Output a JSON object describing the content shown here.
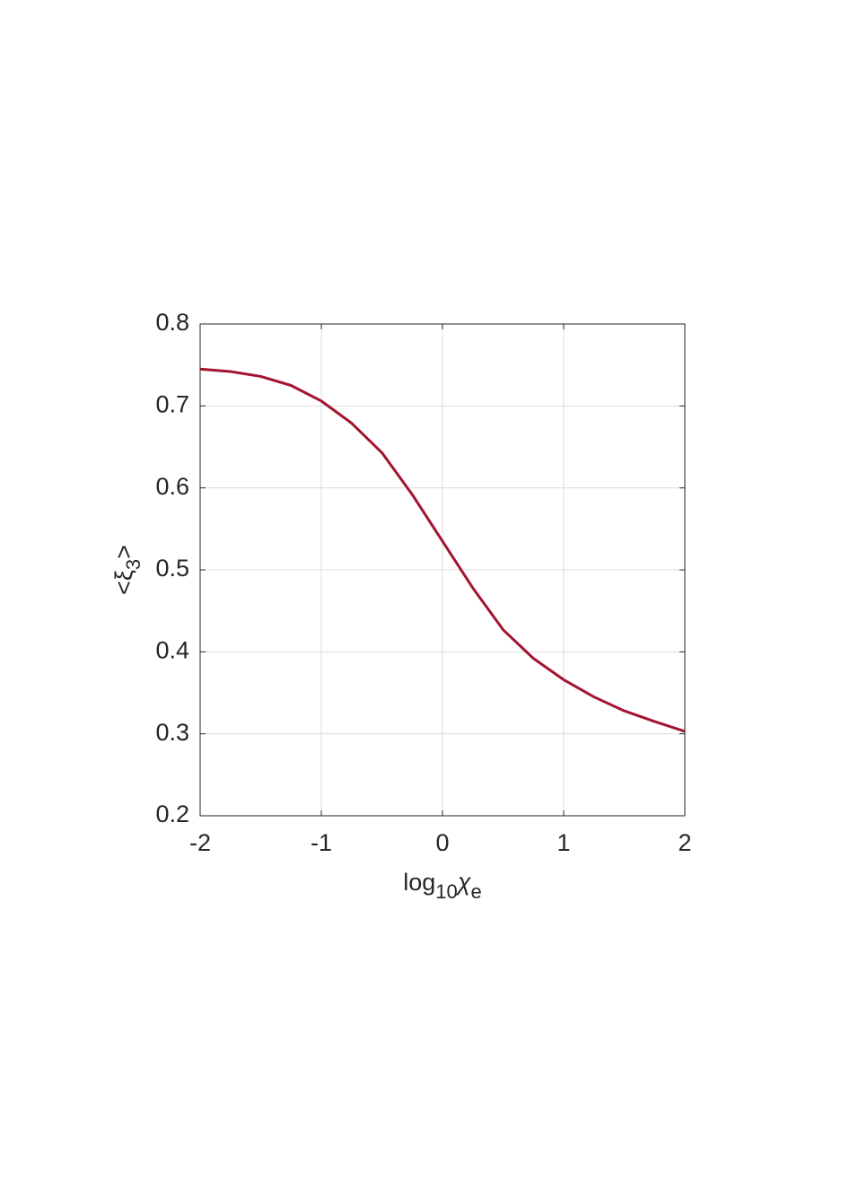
{
  "chart_data": {
    "type": "line",
    "x": [
      -2,
      -1.75,
      -1.5,
      -1.25,
      -1,
      -0.75,
      -0.5,
      -0.25,
      0,
      0.25,
      0.5,
      0.75,
      1,
      1.25,
      1.5,
      1.75,
      2
    ],
    "values": [
      0.745,
      0.742,
      0.736,
      0.725,
      0.706,
      0.679,
      0.643,
      0.592,
      0.535,
      0.478,
      0.427,
      0.392,
      0.366,
      0.345,
      0.328,
      0.315,
      0.303
    ],
    "color": "#a2142f",
    "xlim": [
      -2,
      2
    ],
    "xticks": [
      -2,
      -1,
      0,
      1,
      2
    ],
    "ylim": [
      0.2,
      0.8
    ],
    "yticks": [
      0.2,
      0.3,
      0.4,
      0.5,
      0.6,
      0.7,
      0.8
    ],
    "grid": true,
    "xlabel": [
      "log",
      "10",
      "χ",
      "e"
    ],
    "ylabel": [
      "<ξ",
      "3",
      ">"
    ]
  }
}
